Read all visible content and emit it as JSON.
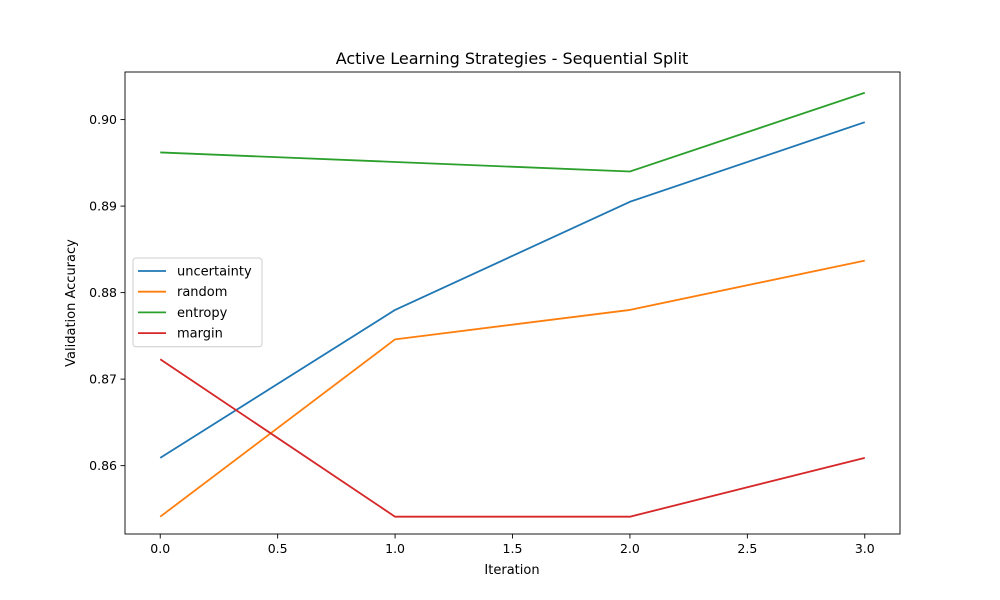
{
  "chart_data": {
    "type": "line",
    "title": "Active Learning Strategies - Sequential Split",
    "xlabel": "Iteration",
    "ylabel": "Validation Accuracy",
    "x": [
      0,
      1,
      2,
      3
    ],
    "xlim": [
      -0.15,
      3.15
    ],
    "ylim": [
      0.8521,
      0.9055
    ],
    "xticks": [
      0.0,
      0.5,
      1.0,
      1.5,
      2.0,
      2.5,
      3.0
    ],
    "xtick_labels": [
      "0.0",
      "0.5",
      "1.0",
      "1.5",
      "2.0",
      "2.5",
      "3.0"
    ],
    "yticks": [
      0.86,
      0.87,
      0.88,
      0.89,
      0.9
    ],
    "ytick_labels": [
      "0.86",
      "0.87",
      "0.88",
      "0.89",
      "0.90"
    ],
    "grid": false,
    "legend_position": "center-left",
    "series": [
      {
        "name": "uncertainty",
        "color": "#1f77b4",
        "values": [
          0.8609,
          0.878,
          0.8905,
          0.8997
        ]
      },
      {
        "name": "random",
        "color": "#ff7f0e",
        "values": [
          0.8541,
          0.8746,
          0.878,
          0.8837
        ]
      },
      {
        "name": "entropy",
        "color": "#2ca02c",
        "values": [
          0.8962,
          0.8951,
          0.894,
          0.9031
        ]
      },
      {
        "name": "margin",
        "color": "#d62728",
        "values": [
          0.8723,
          0.8541,
          0.8541,
          0.8609
        ]
      }
    ]
  }
}
